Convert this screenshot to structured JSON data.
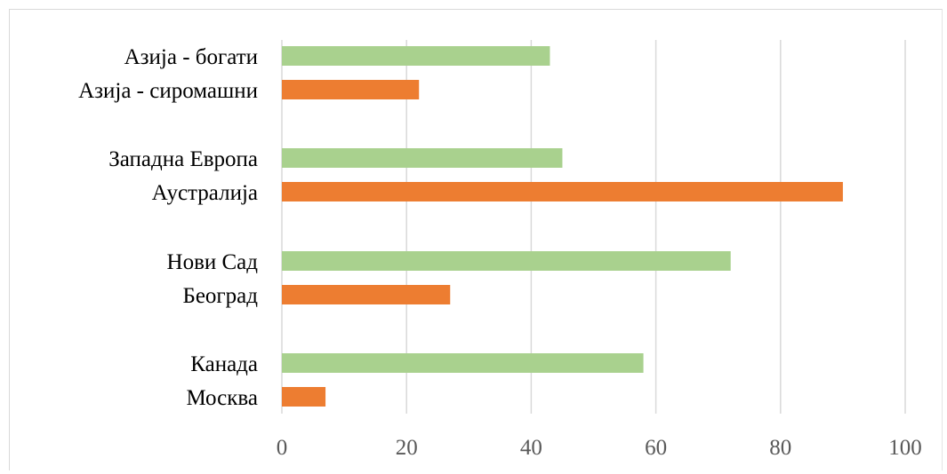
{
  "chart_data": {
    "type": "bar",
    "orientation": "horizontal",
    "title": "",
    "xlabel": "",
    "ylabel": "",
    "xlim": [
      0,
      100
    ],
    "ticks": [
      "0",
      "20",
      "40",
      "60",
      "80",
      "100"
    ],
    "grid": true,
    "legend": "none",
    "bars": [
      {
        "label": "Азија - богати",
        "value": 43,
        "color": "#a9d18e"
      },
      {
        "label": "Азија - сиромашни",
        "value": 22,
        "color": "#ed7d31"
      },
      {
        "label": "Западна Европа",
        "value": 45,
        "color": "#a9d18e"
      },
      {
        "label": "Аустралија",
        "value": 90,
        "color": "#ed7d31"
      },
      {
        "label": "Нови Сад",
        "value": 72,
        "color": "#a9d18e"
      },
      {
        "label": "Београд",
        "value": 27,
        "color": "#ed7d31"
      },
      {
        "label": "Канада",
        "value": 58,
        "color": "#a9d18e"
      },
      {
        "label": "Москва",
        "value": 7,
        "color": "#ed7d31"
      }
    ]
  }
}
